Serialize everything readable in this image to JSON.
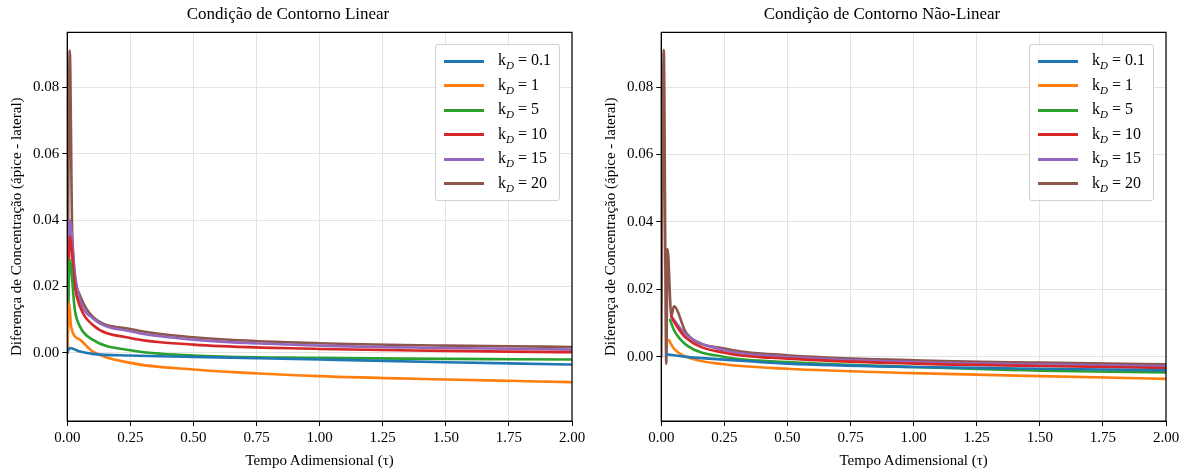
{
  "chart_data": [
    {
      "type": "line",
      "title": "Condição de Contorno Linear",
      "xlabel": "Tempo Adimensional (τ)",
      "ylabel": "Diferença de Concentração (ápice - lateral)",
      "xlim": [
        0,
        2
      ],
      "ylim": [
        -0.0205,
        0.0965
      ],
      "xticks": [
        {
          "value": 0,
          "label": "0.00"
        },
        {
          "value": 0.25,
          "label": "0.25"
        },
        {
          "value": 0.5,
          "label": "0.50"
        },
        {
          "value": 0.75,
          "label": "0.75"
        },
        {
          "value": 1,
          "label": "1.00"
        },
        {
          "value": 1.25,
          "label": "1.25"
        },
        {
          "value": 1.5,
          "label": "1.50"
        },
        {
          "value": 1.75,
          "label": "1.75"
        },
        {
          "value": 2,
          "label": "2.00"
        }
      ],
      "yticks": [
        {
          "value": 0,
          "label": "0.00"
        },
        {
          "value": 0.02,
          "label": "0.02"
        },
        {
          "value": 0.04,
          "label": "0.04"
        },
        {
          "value": 0.06,
          "label": "0.06"
        },
        {
          "value": 0.08,
          "label": "0.08"
        }
      ],
      "grid": true,
      "legend": "top right",
      "marker": "none",
      "line_style": "solid",
      "series": [
        {
          "name": "k$_{D}$ = 0.1",
          "color": "#1f77b4",
          "x": [
            0,
            0.01,
            0.05,
            0.1,
            0.25,
            0.5,
            1,
            1.5,
            2
          ],
          "values": [
            0,
            0.0015,
            0.0004,
            -0.0003,
            -0.0008,
            -0.0012,
            -0.002,
            -0.0028,
            -0.0035
          ]
        },
        {
          "name": "k$_{D}$ = 1",
          "color": "#ff7f0e",
          "x": [
            0,
            0.008,
            0.015,
            0.05,
            0.1,
            0.25,
            0.5,
            1,
            1.5,
            2
          ],
          "values": [
            0,
            0.015,
            0.008,
            0.004,
            0.0005,
            -0.003,
            -0.005,
            -0.007,
            -0.008,
            -0.0088
          ]
        },
        {
          "name": "k$_{D}$ = 5",
          "color": "#2ca02c",
          "x": [
            0,
            0.01,
            0.03,
            0.05,
            0.1,
            0.25,
            0.5,
            1,
            1.5,
            2
          ],
          "values": [
            0,
            0.028,
            0.013,
            0.008,
            0.004,
            0.0008,
            -0.0008,
            -0.0015,
            -0.0018,
            -0.002
          ]
        },
        {
          "name": "k$_{D}$ = 10",
          "color": "#d62728",
          "x": [
            0,
            0.01,
            0.03,
            0.05,
            0.1,
            0.25,
            0.5,
            1,
            1.5,
            2
          ],
          "values": [
            0,
            0.035,
            0.02,
            0.014,
            0.0085,
            0.0045,
            0.0025,
            0.0012,
            0.0006,
            0.0002
          ]
        },
        {
          "name": "k$_{D}$ = 15",
          "color": "#9467bd",
          "x": [
            0,
            0.01,
            0.03,
            0.05,
            0.1,
            0.25,
            0.5,
            1,
            1.5,
            2
          ],
          "values": [
            0,
            0.04,
            0.024,
            0.016,
            0.0105,
            0.0065,
            0.004,
            0.0022,
            0.0015,
            0.001
          ]
        },
        {
          "name": "k$_{D}$ = 20",
          "color": "#8c564b",
          "x": [
            0,
            0.01,
            0.02,
            0.05,
            0.1,
            0.25,
            0.5,
            1,
            1.5,
            2
          ],
          "values": [
            0,
            0.091,
            0.035,
            0.0174,
            0.011,
            0.0072,
            0.0047,
            0.0029,
            0.0022,
            0.0018
          ]
        }
      ]
    },
    {
      "type": "line",
      "title": "Condição de Contorno Não-Linear",
      "xlabel": "Tempo Adimensional (τ)",
      "ylabel": "Diferença de Concentração (ápice - lateral)",
      "xlim": [
        0,
        2
      ],
      "ylim": [
        -0.019,
        0.0962
      ],
      "xticks": [
        {
          "value": 0,
          "label": "0.00"
        },
        {
          "value": 0.25,
          "label": "0.25"
        },
        {
          "value": 0.5,
          "label": "0.50"
        },
        {
          "value": 0.75,
          "label": "0.75"
        },
        {
          "value": 1,
          "label": "1.00"
        },
        {
          "value": 1.25,
          "label": "1.25"
        },
        {
          "value": 1.5,
          "label": "1.50"
        },
        {
          "value": 1.75,
          "label": "1.75"
        },
        {
          "value": 2,
          "label": "2.00"
        }
      ],
      "yticks": [
        {
          "value": 0,
          "label": "0.00"
        },
        {
          "value": 0.02,
          "label": "0.02"
        },
        {
          "value": 0.04,
          "label": "0.04"
        },
        {
          "value": 0.06,
          "label": "0.06"
        },
        {
          "value": 0.08,
          "label": "0.08"
        }
      ],
      "grid": true,
      "legend": "top right",
      "marker": "none",
      "line_style": "solid",
      "series": [
        {
          "name": "k$_{D}$ = 0.1",
          "color": "#1f77b4",
          "x": [
            0.02,
            0.05,
            0.1,
            0.25,
            0.5,
            1,
            1.5,
            2
          ],
          "values": [
            0.0008,
            0.0005,
            0,
            -0.0008,
            -0.002,
            -0.003,
            -0.0035,
            -0.004
          ]
        },
        {
          "name": "k$_{D}$ = 1",
          "color": "#ff7f0e",
          "x": [
            0.03,
            0.05,
            0.1,
            0.25,
            0.5,
            1,
            1.5,
            2
          ],
          "values": [
            0.005,
            0.0025,
            0,
            -0.0022,
            -0.0035,
            -0.0048,
            -0.0057,
            -0.0065
          ]
        },
        {
          "name": "k$_{D}$ = 5",
          "color": "#2ca02c",
          "x": [
            0.035,
            0.05,
            0.1,
            0.25,
            0.5,
            1,
            1.5,
            2
          ],
          "values": [
            0.011,
            0.008,
            0.0035,
            0,
            -0.0015,
            -0.003,
            -0.0041,
            -0.0046
          ]
        },
        {
          "name": "k$_{D}$ = 10",
          "color": "#d62728",
          "x": [
            0.04,
            0.05,
            0.1,
            0.25,
            0.5,
            1,
            1.5,
            2
          ],
          "values": [
            0.012,
            0.0105,
            0.0055,
            0.0012,
            -0.0005,
            -0.002,
            -0.0027,
            -0.0033
          ]
        },
        {
          "name": "k$_{D}$ = 15",
          "color": "#9467bd",
          "x": [
            0.04,
            0.05,
            0.1,
            0.25,
            0.5,
            1,
            1.5,
            2
          ],
          "values": [
            0.012,
            0.011,
            0.0065,
            0.002,
            0,
            -0.0015,
            -0.0022,
            -0.0028
          ]
        },
        {
          "name": "k$_{D}$ = 20",
          "color": "#8c564b",
          "x": [
            0,
            0.01,
            0.02,
            0.025,
            0.04,
            0.05,
            0.1,
            0.25,
            0.5,
            1,
            1.5,
            2
          ],
          "values": [
            0,
            0.091,
            -0.002,
            0.032,
            0.012,
            0.015,
            0.007,
            0.0025,
            0.0005,
            -0.001,
            -0.0017,
            -0.0022
          ]
        }
      ]
    }
  ]
}
